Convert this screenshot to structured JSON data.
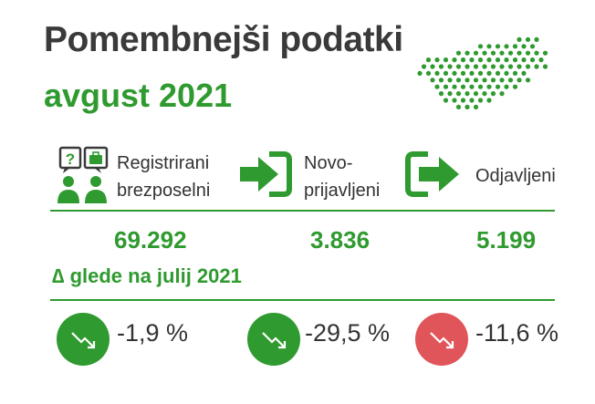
{
  "header": {
    "title": "Pomembnejši podatki",
    "period": "avgust 2021"
  },
  "map": {
    "icon": "slovenia-dotted-map-icon",
    "color": "#2f9a2f"
  },
  "metrics": [
    {
      "icon": "unemployed-people-question-briefcase-icon",
      "label_line1": "Registrirani",
      "label_line2": "brezposelni",
      "value": "69.292",
      "change": "-1,9 %",
      "trend": "down",
      "badge_color": "#2f9a2f"
    },
    {
      "icon": "arrow-enter-icon",
      "label_line1": "Novo-",
      "label_line2": "prijavljeni",
      "value": "3.836",
      "change": "-29,5 %",
      "trend": "down",
      "badge_color": "#2f9a2f"
    },
    {
      "icon": "arrow-exit-icon",
      "label_line1": "Odjavljeni",
      "value": "5.199",
      "change": "-11,6 %",
      "trend": "down",
      "badge_color": "#e0555a"
    }
  ],
  "delta": {
    "heading": "∆ glede na julij 2021"
  },
  "colors": {
    "accent": "#2f9a2f",
    "negative": "#e0555a",
    "text": "#333333"
  }
}
